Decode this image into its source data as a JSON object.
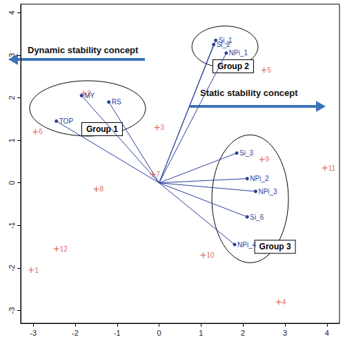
{
  "chart_data": {
    "type": "biplot",
    "xlim": [
      -3.3,
      4.3
    ],
    "ylim": [
      -3.3,
      4.2
    ],
    "xticks": [
      -3,
      -2,
      -1,
      0,
      1,
      2,
      3,
      4
    ],
    "yticks": [
      -3,
      -2,
      -1,
      0,
      1,
      2,
      3,
      4
    ],
    "grid": false,
    "points": {
      "labels": [
        "1",
        "2",
        "3",
        "4",
        "5",
        "6",
        "7",
        "8",
        "9",
        "10",
        "11",
        "12"
      ],
      "x": [
        -3.05,
        -1.8,
        -0.05,
        2.85,
        2.5,
        -2.95,
        -0.15,
        -1.5,
        2.45,
        1.05,
        3.95,
        -2.45
      ],
      "y": [
        -2.05,
        2.1,
        1.3,
        -2.8,
        2.65,
        1.2,
        0.2,
        -0.15,
        0.55,
        -1.7,
        0.35,
        -1.55
      ],
      "color": "#d9403a",
      "marker": "plus"
    },
    "vectors": {
      "labels": [
        "MY",
        "RS",
        "TOP",
        "Si_1",
        "Si_2",
        "NPi_1",
        "Si_3",
        "NPi_2",
        "NPi_3",
        "Si_6",
        "NPi_4"
      ],
      "x": [
        -1.85,
        -1.2,
        -2.45,
        1.35,
        1.3,
        1.6,
        1.85,
        2.1,
        2.3,
        2.1,
        1.8
      ],
      "y": [
        2.05,
        1.9,
        1.45,
        3.35,
        3.25,
        3.05,
        0.7,
        0.1,
        -0.2,
        -0.8,
        -1.45
      ],
      "color": "#2a3f9a"
    },
    "groups": [
      {
        "label": "Group 1",
        "members": [
          "MY",
          "RS",
          "TOP"
        ]
      },
      {
        "label": "Group 2",
        "members": [
          "Si_1",
          "Si_2",
          "NPi_1"
        ]
      },
      {
        "label": "Group 3",
        "members": [
          "Si_3",
          "NPi_2",
          "NPi_3",
          "Si_6",
          "NPi_4"
        ]
      }
    ],
    "annotations": [
      "Dynamic stability concept",
      "Static stability concept"
    ]
  }
}
